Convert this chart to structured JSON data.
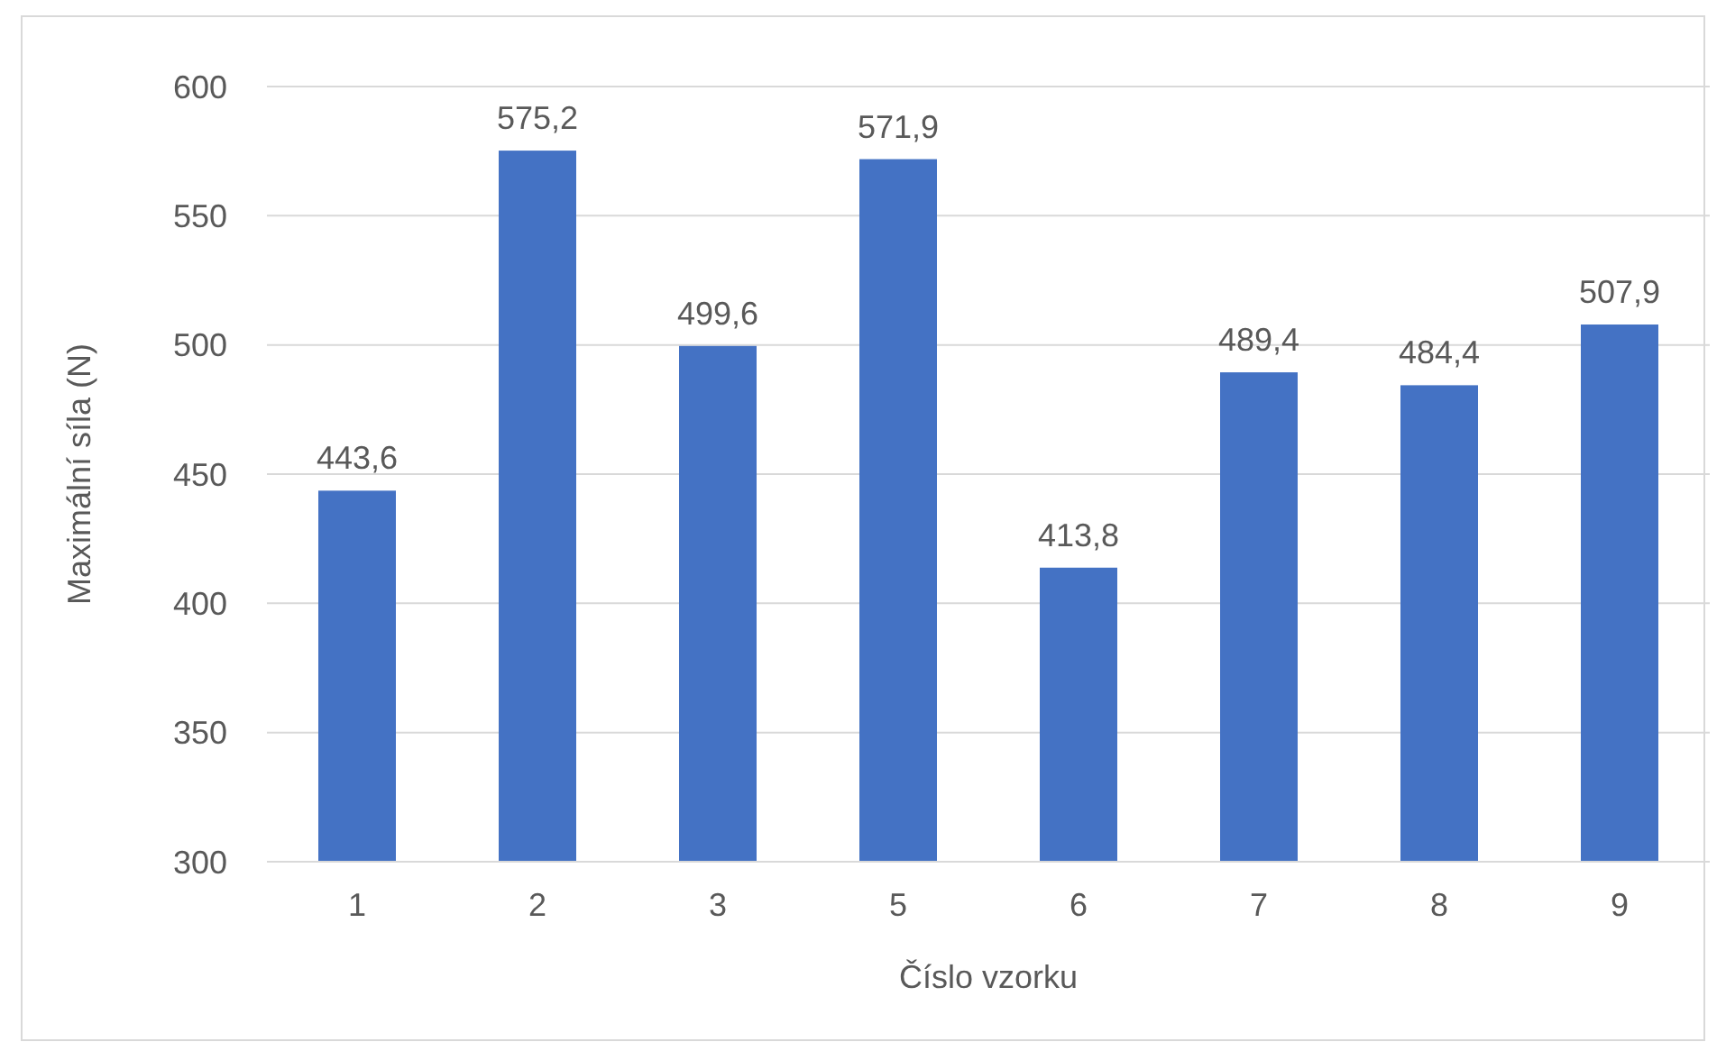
{
  "chart_data": {
    "type": "bar",
    "xlabel": "Číslo vzorku",
    "ylabel": "Maximální síla (N)",
    "categories": [
      "1",
      "2",
      "3",
      "5",
      "6",
      "7",
      "8",
      "9"
    ],
    "values": [
      443.6,
      575.2,
      499.6,
      571.9,
      413.8,
      489.4,
      484.4,
      507.9
    ],
    "value_labels": [
      "443,6",
      "575,2",
      "499,6",
      "571,9",
      "413,8",
      "489,4",
      "484,4",
      "507,9"
    ],
    "color": "#4472c4",
    "ylim": [
      300,
      600
    ],
    "yticks": [
      300,
      350,
      400,
      450,
      500,
      550,
      600
    ],
    "grid": "y"
  }
}
